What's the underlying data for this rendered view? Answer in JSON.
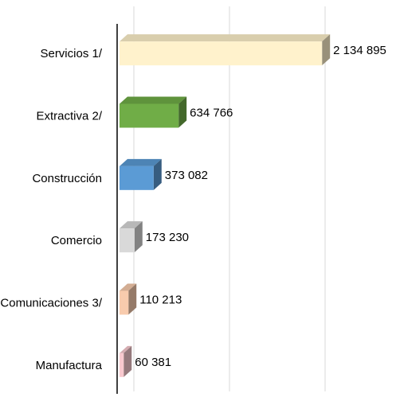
{
  "chart_data": {
    "type": "bar",
    "orientation": "horizontal",
    "three_d": true,
    "categories": [
      "Servicios 1/",
      "Extractiva 2/",
      "Construcción",
      "Comercio",
      "Comunicaciones 3/",
      "Manufactura"
    ],
    "values": [
      2134895,
      634766,
      373082,
      173230,
      110213,
      60381
    ],
    "value_labels": [
      "2 134 895",
      "634 766",
      "373 082",
      "173 230",
      "110 213",
      "60 381"
    ],
    "colors": [
      "#fff2cc",
      "#70ad47",
      "#5b9bd5",
      "#d9d9d9",
      "#f8cbad",
      "#f9c9cf"
    ],
    "xlim": [
      0,
      2000000
    ],
    "xticks": [
      0,
      1000000,
      2000000
    ],
    "grid": true
  }
}
